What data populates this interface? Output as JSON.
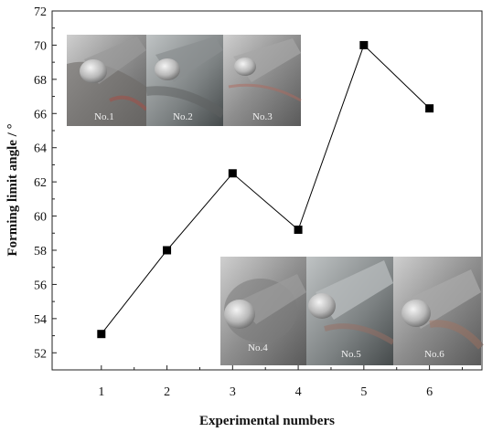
{
  "chart_data": {
    "type": "line",
    "xlabel": "Experimental numbers",
    "ylabel": "Forming limit angle / °",
    "x": [
      1,
      2,
      3,
      4,
      5,
      6
    ],
    "values": [
      53.1,
      58.0,
      62.5,
      59.2,
      70.0,
      66.3
    ],
    "xlim": [
      0.25,
      6.8
    ],
    "ylim": [
      51,
      72
    ],
    "xticks": [
      1,
      2,
      3,
      4,
      5,
      6
    ],
    "yticks": [
      52,
      54,
      56,
      58,
      60,
      62,
      64,
      66,
      68,
      70,
      72
    ],
    "grid": false,
    "marker": "square",
    "series_color": "#000000",
    "inset_photos": [
      {
        "label": "No.1"
      },
      {
        "label": "No.2"
      },
      {
        "label": "No.3"
      },
      {
        "label": "No.4"
      },
      {
        "label": "No.5"
      },
      {
        "label": "No.6"
      }
    ]
  }
}
